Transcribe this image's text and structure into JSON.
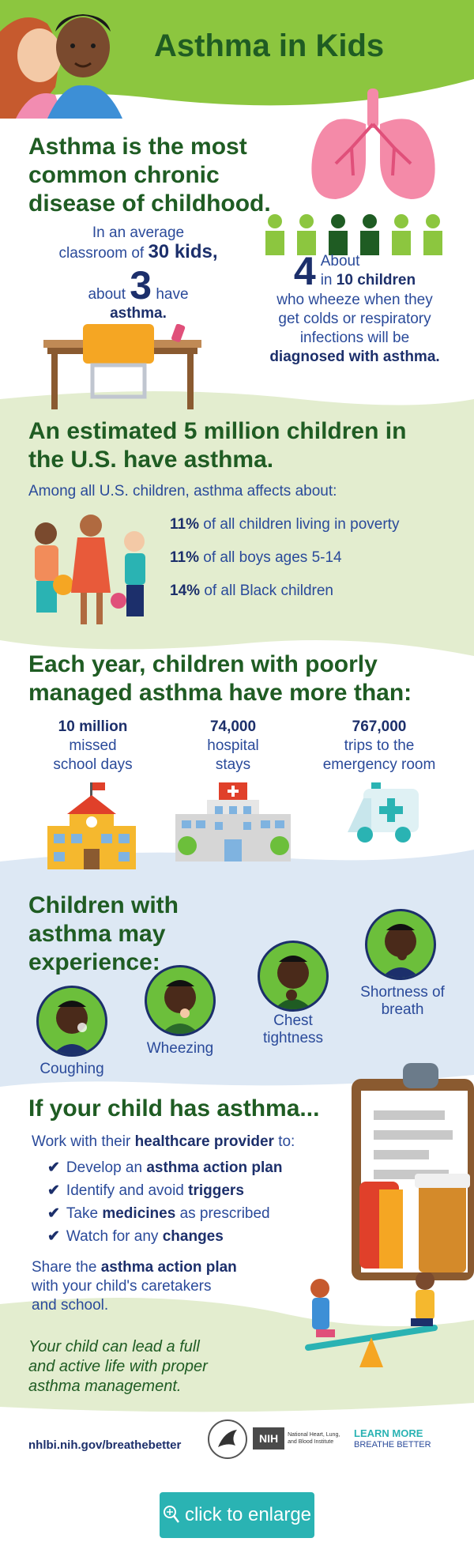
{
  "header": {
    "title": "Asthma in Kids"
  },
  "section1": {
    "headline": "Asthma is the most common chronic disease of childhood.",
    "classroom": {
      "line1": "In an average",
      "line2": "classroom of",
      "count": "30 kids,",
      "pre": "about",
      "number": "3",
      "post": "have",
      "last": "asthma."
    },
    "wheeze": {
      "number": "4",
      "about": "About",
      "in": "in",
      "ten": "10 children",
      "line1": "who wheeze when they",
      "line2": "get colds or respiratory",
      "line3": "infections will be",
      "line4": "diagnosed with asthma."
    }
  },
  "section2": {
    "headline": "An estimated 5 million children in the U.S. have asthma.",
    "intro": "Among all U.S. children, asthma affects about:",
    "stats": [
      {
        "pct": "11%",
        "text": "of all children living in poverty"
      },
      {
        "pct": "11%",
        "text": "of all boys ages 5-14"
      },
      {
        "pct": "14%",
        "text": "of all Black children"
      }
    ]
  },
  "section3": {
    "headline": "Each year, children with poorly managed asthma have more than:",
    "items": [
      {
        "value": "10 million",
        "line1": "missed",
        "line2": "school days"
      },
      {
        "value": "74,000",
        "line1": "hospital",
        "line2": "stays"
      },
      {
        "value": "767,000",
        "line1": "trips to the",
        "line2": "emergency room"
      }
    ]
  },
  "section4": {
    "headline": "Children with asthma may experience:",
    "symptoms": [
      {
        "line1": "Coughing",
        "line2": ""
      },
      {
        "line1": "Wheezing",
        "line2": ""
      },
      {
        "line1": "Chest",
        "line2": "tightness"
      },
      {
        "line1": "Shortness of",
        "line2": "breath"
      }
    ]
  },
  "section5": {
    "headline": "If your child has asthma...",
    "intro_pre": "Work with their",
    "intro_bold": "healthcare provider",
    "intro_post": "to:",
    "checks": [
      {
        "pre": "Develop an",
        "bold": "asthma action plan",
        "post": ""
      },
      {
        "pre": "Identify and avoid",
        "bold": "triggers",
        "post": ""
      },
      {
        "pre": "Take",
        "bold": "medicines",
        "post": "as prescribed"
      },
      {
        "pre": "Watch for any",
        "bold": "changes",
        "post": ""
      }
    ],
    "share_pre": "Share the",
    "share_bold": "asthma action plan",
    "share_line2": "with your child's caretakers",
    "share_line3": "and school.",
    "closing1": "Your child can lead a full",
    "closing2": "and active life with proper",
    "closing3": "asthma management."
  },
  "footer": {
    "url": "nhlbi.nih.gov/breathebetter",
    "nih": "NIH",
    "nhlbi1": "National Heart, Lung,",
    "nhlbi2": "and Blood Institute",
    "learn": "LEARN MORE",
    "breathe": "BREATHE BETTER"
  },
  "button": {
    "label": "click to enlarge"
  },
  "colors": {
    "green": "#1f5c23",
    "navy": "#1c2f6b",
    "blue": "#2a4a9a",
    "lime": "#8cc63f",
    "teal": "#2ab3b3"
  }
}
